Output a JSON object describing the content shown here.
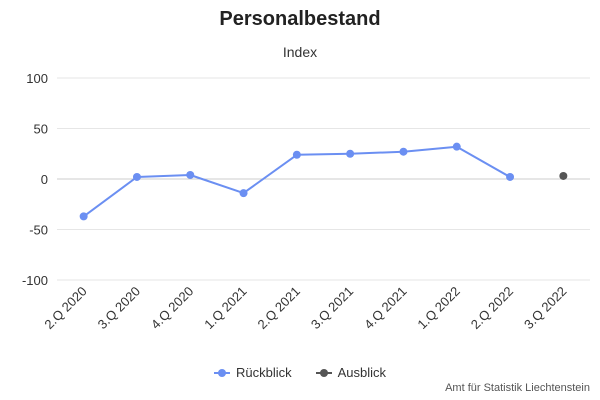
{
  "colors": {
    "rueckblick": "#6b8ff2",
    "ausblick": "#555555",
    "grid": "#e6e6e6",
    "zero_line": "#cccccc"
  },
  "legend": {
    "rueckblick": "Rückblick",
    "ausblick": "Ausblick"
  },
  "credits": "Amt für Statistik Liechtenstein",
  "chart_data": {
    "type": "line",
    "title": "Personalbestand",
    "subtitle": "Index",
    "xlabel": "",
    "ylabel": "",
    "categories": [
      "2.Q 2020",
      "3.Q 2020",
      "4.Q 2020",
      "1.Q 2021",
      "2.Q 2021",
      "3.Q 2021",
      "4.Q 2021",
      "1.Q 2022",
      "2.Q 2022",
      "3.Q 2022"
    ],
    "ylim": [
      -100,
      100
    ],
    "yticks": [
      100,
      50,
      0,
      -50,
      -100
    ],
    "grid": true,
    "legend_position": "bottom",
    "series": [
      {
        "name": "Rückblick",
        "values": [
          -37,
          2,
          4,
          -14,
          24,
          25,
          27,
          32,
          2,
          null
        ]
      },
      {
        "name": "Ausblick",
        "values": [
          null,
          null,
          null,
          null,
          null,
          null,
          null,
          null,
          null,
          3
        ]
      }
    ]
  }
}
